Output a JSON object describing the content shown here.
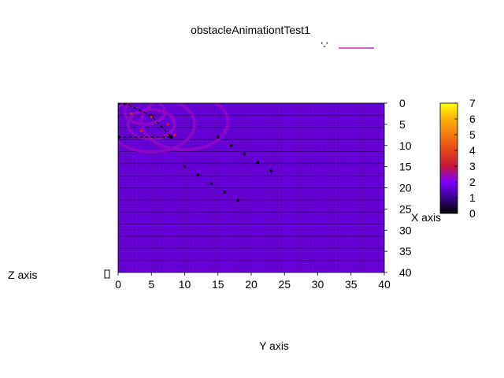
{
  "chart_data": {
    "type": "heatmap",
    "title": "obstacleAnimationtTest1",
    "xlabel": "Y axis",
    "ylabel": "X axis",
    "zlabel": "Z axis",
    "legend_key_label": "'-'",
    "legend_placement": "top-right",
    "xlim": [
      0,
      40
    ],
    "ylim": [
      40,
      0
    ],
    "x_ticks": [
      "0",
      "5",
      "10",
      "15",
      "20",
      "25",
      "30",
      "35",
      "40"
    ],
    "y_ticks": [
      "0",
      "5",
      "10",
      "15",
      "20",
      "25",
      "30",
      "35",
      "40"
    ],
    "colorbar": {
      "range": [
        0,
        7
      ],
      "ticks": [
        "0",
        "1",
        "2",
        "3",
        "4",
        "5",
        "6",
        "7"
      ],
      "palette": [
        "#000000",
        "#3a0090",
        "#7f00ff",
        "#c4163c",
        "#e6451a",
        "#f47a0c",
        "#fcb00a",
        "#ffff00"
      ]
    },
    "background_value": 1.7,
    "ring_value": 2.3,
    "rings": [
      {
        "cx": 5,
        "cy": 5,
        "r": 3.5
      },
      {
        "cx": 5,
        "cy": 5,
        "r": 6.5
      },
      {
        "cx": 10,
        "cy": 4.5,
        "r": 6.5
      },
      {
        "cx": 4,
        "cy": 2,
        "r": 3
      }
    ],
    "red_points": [
      {
        "x": 2,
        "y": 2.5
      },
      {
        "x": 5,
        "y": 3.2
      },
      {
        "x": 7.5,
        "y": 5
      },
      {
        "x": 3.5,
        "y": 6.5
      },
      {
        "x": 8.5,
        "y": 7.5
      }
    ],
    "black_points": [
      {
        "x": 15,
        "y": 8
      },
      {
        "x": 17,
        "y": 10
      },
      {
        "x": 19,
        "y": 12
      },
      {
        "x": 21,
        "y": 14
      },
      {
        "x": 23,
        "y": 16
      },
      {
        "x": 10,
        "y": 15
      },
      {
        "x": 12,
        "y": 17
      },
      {
        "x": 14,
        "y": 19
      },
      {
        "x": 16,
        "y": 21
      },
      {
        "x": 18,
        "y": 23
      }
    ],
    "obstacle_polygon": [
      {
        "x": 0,
        "y": 0
      },
      {
        "x": 1,
        "y": 0
      },
      {
        "x": 5,
        "y": 3
      },
      {
        "x": 8,
        "y": 8
      },
      {
        "x": 0,
        "y": 8
      }
    ]
  }
}
